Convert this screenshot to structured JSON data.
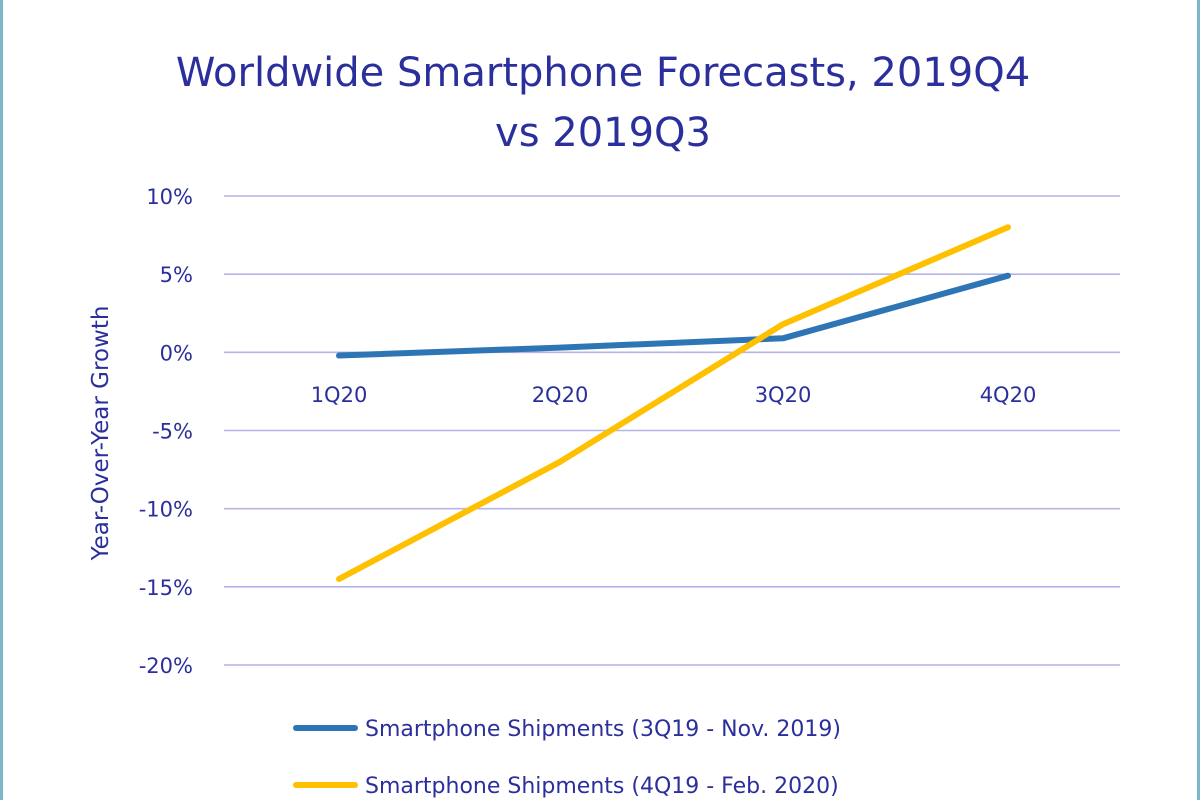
{
  "chart_data": {
    "type": "line",
    "title": [
      "Worldwide Smartphone Forecasts, 2019Q4",
      "vs 2019Q3"
    ],
    "xlabel": "",
    "ylabel": "Year-Over-Year Growth",
    "categories": [
      "1Q20",
      "2Q20",
      "3Q20",
      "4Q20"
    ],
    "ylim": [
      -20,
      10
    ],
    "yticks": [
      "10%",
      "5%",
      "0%",
      "-5%",
      "-10%",
      "-15%",
      "-20%"
    ],
    "ytick_values": [
      10,
      5,
      0,
      -5,
      -10,
      -15,
      -20
    ],
    "grid": true,
    "legend_position": "bottom",
    "series": [
      {
        "name": "Smartphone Shipments (3Q19 - Nov. 2019)",
        "color": "#2e75b6",
        "values": [
          -0.2,
          0.3,
          0.9,
          4.9
        ]
      },
      {
        "name": "Smartphone Shipments (4Q19 - Feb. 2020)",
        "color": "#ffc000",
        "values": [
          -14.5,
          -7.0,
          1.8,
          8.0
        ]
      }
    ],
    "gridline_color": "#b4b4e6",
    "text_color": "#2b2f9c"
  }
}
